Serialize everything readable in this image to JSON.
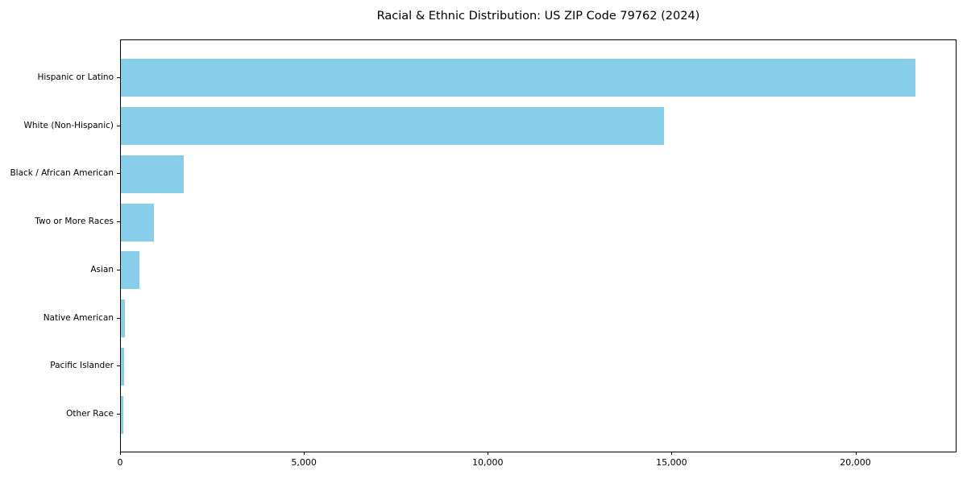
{
  "chart_data": {
    "type": "bar",
    "orientation": "horizontal",
    "title": "Racial & Ethnic Distribution: US ZIP Code 79762 (2024)",
    "categories": [
      "Hispanic or Latino",
      "White (Non-Hispanic)",
      "Black / African American",
      "Two or More Races",
      "Asian",
      "Native American",
      "Pacific Islander",
      "Other Race"
    ],
    "values": [
      21650,
      14800,
      1710,
      900,
      500,
      100,
      85,
      70
    ],
    "xlabel": "",
    "ylabel": "",
    "x_ticks": [
      0,
      5000,
      10000,
      15000,
      20000
    ],
    "x_tick_labels": [
      "0",
      "5,000",
      "10,000",
      "15,000",
      "20,000"
    ],
    "xlim": [
      0,
      22750
    ],
    "grid": false,
    "legend_position": "none",
    "colors": {
      "bar": "#87CEEB",
      "axis": "#000000",
      "text": "#000000",
      "background": "#ffffff"
    }
  }
}
